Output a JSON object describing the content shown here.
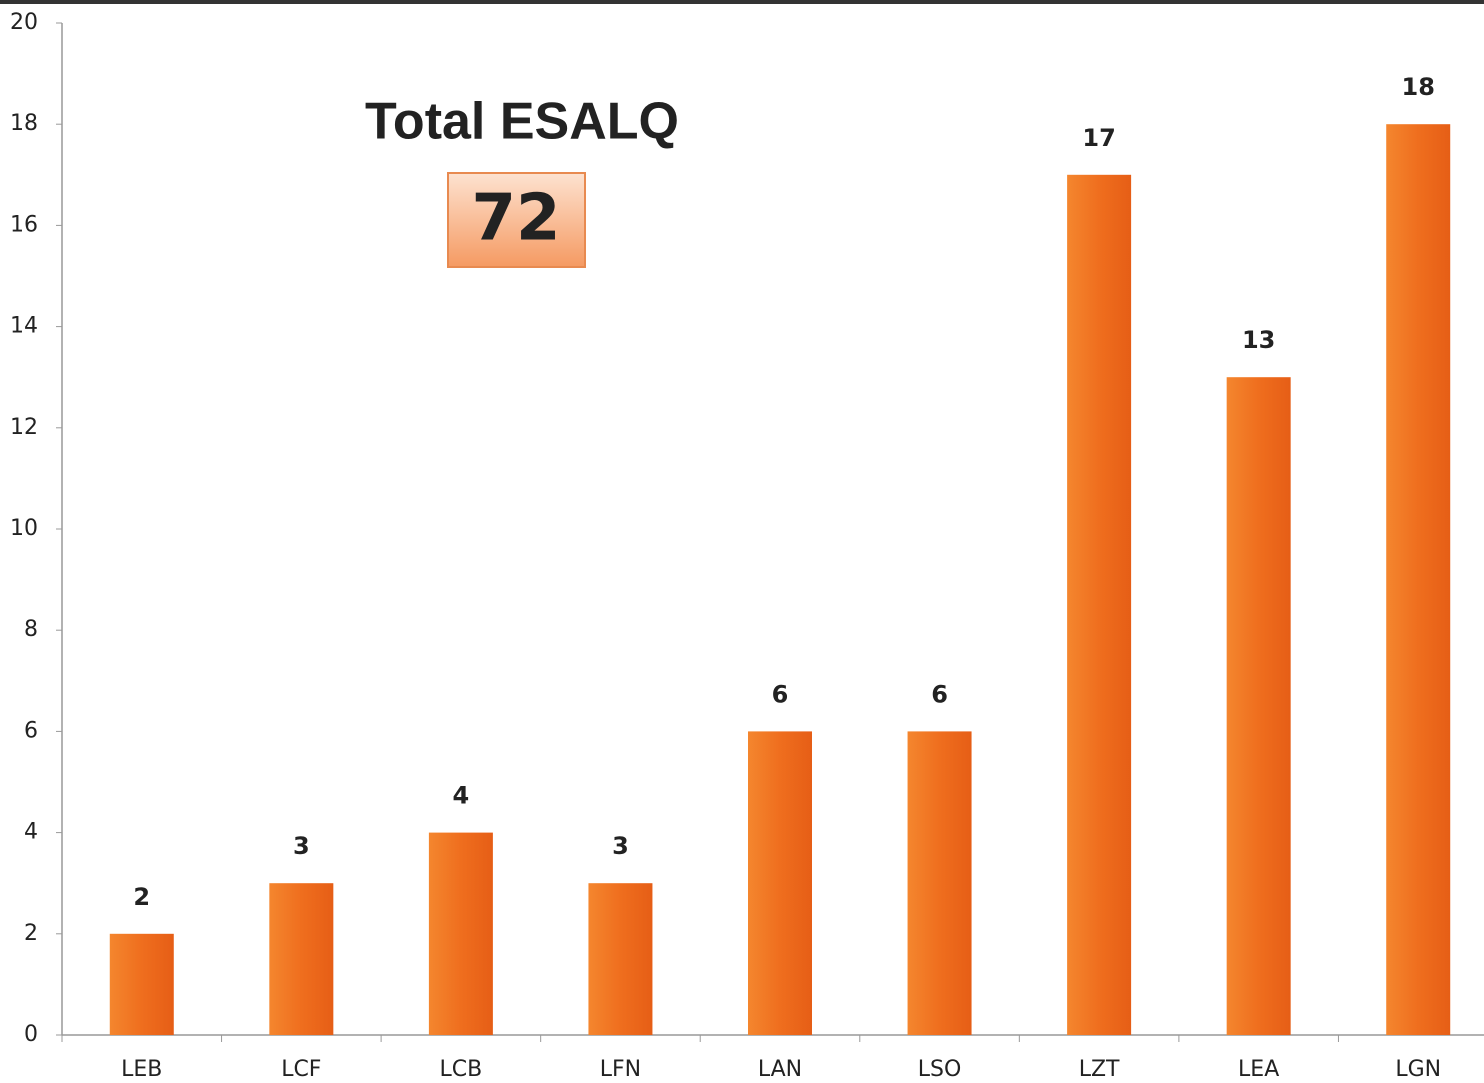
{
  "chart_data": {
    "type": "bar",
    "title": "Total ESALQ",
    "total": 72,
    "categories": [
      "LEB",
      "LCF",
      "LCB",
      "LFN",
      "LAN",
      "LSO",
      "LZT",
      "LEA",
      "LGN"
    ],
    "values": [
      2,
      3,
      4,
      3,
      6,
      6,
      17,
      13,
      18
    ],
    "color": "#ee6c1c",
    "ylim": [
      0,
      20
    ],
    "yticks": [
      0,
      2,
      4,
      6,
      8,
      10,
      12,
      14,
      16,
      18,
      20
    ],
    "grid": false
  }
}
